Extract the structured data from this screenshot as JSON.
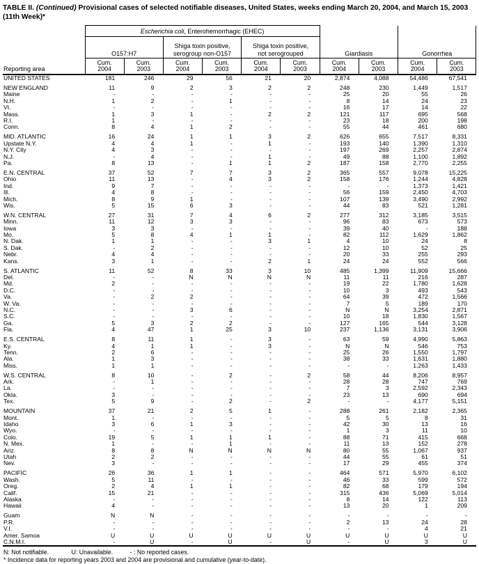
{
  "title": {
    "part_bold": "TABLE II. ",
    "part_italic": "(Continued)",
    "part_rest": " Provisional cases of selected notifiable diseases, United States, weeks ending March 20, 2004, and March 15, 2003",
    "line2": "(11th Week)*"
  },
  "table": {
    "header": {
      "reporting_area": "Reporting area",
      "ehec_italic": "Escherichia coli",
      "ehec_rest": ", Enterohemorrhagic (EHEC)",
      "sub1": "O157:H7",
      "sub2_line1": "Shiga toxin positive,",
      "sub2_line2": "serogroup non-O157",
      "sub3_line1": "Shiga toxin positive,",
      "sub3_line2": "not serogrouped",
      "disease1": "Giardiasis",
      "disease2": "Gonorrhea",
      "cum_label": "Cum.",
      "cum_years": [
        "2004",
        "2003",
        "2004",
        "2003",
        "2004",
        "2003",
        "2004",
        "2003",
        "2004",
        "2003"
      ]
    },
    "rows": [
      {
        "area": "UNITED STATES",
        "gap_before": false,
        "values": [
          "181",
          "246",
          "29",
          "56",
          "21",
          "20",
          "2,874",
          "4,088",
          "54,486",
          "67,541"
        ]
      },
      {
        "area": "NEW ENGLAND",
        "gap_before": true,
        "values": [
          "11",
          "9",
          "2",
          "3",
          "2",
          "2",
          "248",
          "230",
          "1,449",
          "1,517"
        ]
      },
      {
        "area": "Maine",
        "gap_before": false,
        "values": [
          "-",
          "-",
          "-",
          "-",
          "-",
          "-",
          "25",
          "20",
          "55",
          "26"
        ]
      },
      {
        "area": "N.H.",
        "gap_before": false,
        "values": [
          "1",
          "2",
          "-",
          "1",
          "-",
          "-",
          "8",
          "14",
          "24",
          "23"
        ]
      },
      {
        "area": "Vt.",
        "gap_before": false,
        "values": [
          "-",
          "-",
          "-",
          "-",
          "-",
          "-",
          "16",
          "17",
          "14",
          "22"
        ]
      },
      {
        "area": "Mass.",
        "gap_before": false,
        "values": [
          "1",
          "3",
          "1",
          "-",
          "2",
          "2",
          "121",
          "117",
          "695",
          "568"
        ]
      },
      {
        "area": "R.I.",
        "gap_before": false,
        "values": [
          "1",
          "-",
          "-",
          "-",
          "-",
          "-",
          "23",
          "18",
          "200",
          "198"
        ]
      },
      {
        "area": "Conn.",
        "gap_before": false,
        "values": [
          "8",
          "4",
          "1",
          "2",
          "-",
          "-",
          "55",
          "44",
          "461",
          "680"
        ]
      },
      {
        "area": "MID. ATLANTIC",
        "gap_before": true,
        "values": [
          "16",
          "24",
          "1",
          "1",
          "3",
          "2",
          "626",
          "655",
          "7,517",
          "8,331"
        ]
      },
      {
        "area": "Upstate N.Y.",
        "gap_before": false,
        "values": [
          "4",
          "4",
          "1",
          "-",
          "1",
          "-",
          "193",
          "140",
          "1,390",
          "1,310"
        ]
      },
      {
        "area": "N.Y. City",
        "gap_before": false,
        "values": [
          "4",
          "3",
          "-",
          "-",
          "-",
          "-",
          "197",
          "269",
          "2,257",
          "2,874"
        ]
      },
      {
        "area": "N.J.",
        "gap_before": false,
        "values": [
          "-",
          "4",
          "-",
          "-",
          "1",
          "-",
          "49",
          "88",
          "1,100",
          "1,892"
        ]
      },
      {
        "area": "Pa.",
        "gap_before": false,
        "values": [
          "8",
          "13",
          "-",
          "1",
          "1",
          "2",
          "187",
          "158",
          "2,770",
          "2,255"
        ]
      },
      {
        "area": "E.N. CENTRAL",
        "gap_before": true,
        "values": [
          "37",
          "52",
          "7",
          "7",
          "3",
          "2",
          "365",
          "557",
          "9,078",
          "15,225"
        ]
      },
      {
        "area": "Ohio",
        "gap_before": false,
        "values": [
          "11",
          "13",
          "-",
          "4",
          "3",
          "2",
          "158",
          "176",
          "1,244",
          "4,828"
        ]
      },
      {
        "area": "Ind.",
        "gap_before": false,
        "values": [
          "9",
          "7",
          "-",
          "-",
          "-",
          "-",
          "-",
          "-",
          "1,373",
          "1,421"
        ]
      },
      {
        "area": "Ill.",
        "gap_before": false,
        "values": [
          "4",
          "8",
          "-",
          "-",
          "-",
          "-",
          "56",
          "159",
          "2,450",
          "4,703"
        ]
      },
      {
        "area": "Mich.",
        "gap_before": false,
        "values": [
          "8",
          "9",
          "1",
          "-",
          "-",
          "-",
          "107",
          "139",
          "3,490",
          "2,992"
        ]
      },
      {
        "area": "Wis.",
        "gap_before": false,
        "values": [
          "5",
          "15",
          "6",
          "3",
          "-",
          "-",
          "44",
          "83",
          "521",
          "1,281"
        ]
      },
      {
        "area": "W.N. CENTRAL",
        "gap_before": true,
        "values": [
          "27",
          "31",
          "7",
          "4",
          "6",
          "2",
          "277",
          "312",
          "3,185",
          "3,515"
        ]
      },
      {
        "area": "Minn.",
        "gap_before": false,
        "values": [
          "11",
          "12",
          "3",
          "3",
          "-",
          "-",
          "96",
          "83",
          "673",
          "573"
        ]
      },
      {
        "area": "Iowa",
        "gap_before": false,
        "values": [
          "3",
          "3",
          "-",
          "-",
          "-",
          "-",
          "39",
          "40",
          "-",
          "188"
        ]
      },
      {
        "area": "Mo.",
        "gap_before": false,
        "values": [
          "5",
          "8",
          "4",
          "1",
          "1",
          "-",
          "82",
          "112",
          "1,629",
          "1,862"
        ]
      },
      {
        "area": "N. Dak.",
        "gap_before": false,
        "values": [
          "1",
          "1",
          "-",
          "-",
          "3",
          "1",
          "4",
          "10",
          "24",
          "8"
        ]
      },
      {
        "area": "S. Dak.",
        "gap_before": false,
        "values": [
          "-",
          "2",
          "-",
          "-",
          "-",
          "-",
          "12",
          "10",
          "52",
          "25"
        ]
      },
      {
        "area": "Nebr.",
        "gap_before": false,
        "values": [
          "4",
          "4",
          "-",
          "-",
          "-",
          "-",
          "20",
          "33",
          "255",
          "293"
        ]
      },
      {
        "area": "Kans.",
        "gap_before": false,
        "values": [
          "3",
          "1",
          "-",
          "-",
          "2",
          "1",
          "24",
          "24",
          "552",
          "566"
        ]
      },
      {
        "area": "S. ATLANTIC",
        "gap_before": true,
        "values": [
          "11",
          "52",
          "8",
          "33",
          "3",
          "10",
          "485",
          "1,399",
          "11,909",
          "15,666"
        ]
      },
      {
        "area": "Del.",
        "gap_before": false,
        "values": [
          "-",
          "-",
          "N",
          "N",
          "N",
          "N",
          "11",
          "11",
          "216",
          "287"
        ]
      },
      {
        "area": "Md.",
        "gap_before": false,
        "values": [
          "2",
          "-",
          "-",
          "-",
          "-",
          "-",
          "19",
          "22",
          "1,780",
          "1,628"
        ]
      },
      {
        "area": "D.C.",
        "gap_before": false,
        "values": [
          "-",
          "-",
          "-",
          "-",
          "-",
          "-",
          "10",
          "3",
          "493",
          "543"
        ]
      },
      {
        "area": "Va.",
        "gap_before": false,
        "values": [
          "-",
          "2",
          "2",
          "-",
          "-",
          "-",
          "64",
          "39",
          "472",
          "1,566"
        ]
      },
      {
        "area": "W. Va.",
        "gap_before": false,
        "values": [
          "-",
          "-",
          "-",
          "-",
          "-",
          "-",
          "7",
          "5",
          "189",
          "170"
        ]
      },
      {
        "area": "N.C.",
        "gap_before": false,
        "values": [
          "-",
          "-",
          "3",
          "6",
          "-",
          "-",
          "N",
          "N",
          "3,254",
          "2,871"
        ]
      },
      {
        "area": "S.C.",
        "gap_before": false,
        "values": [
          "-",
          "-",
          "-",
          "-",
          "-",
          "-",
          "10",
          "18",
          "1,830",
          "1,567"
        ]
      },
      {
        "area": "Ga.",
        "gap_before": false,
        "values": [
          "5",
          "3",
          "2",
          "2",
          "-",
          "-",
          "127",
          "165",
          "544",
          "3,128"
        ]
      },
      {
        "area": "Fla.",
        "gap_before": false,
        "values": [
          "4",
          "47",
          "1",
          "25",
          "3",
          "10",
          "237",
          "1,136",
          "3,131",
          "3,906"
        ]
      },
      {
        "area": "E.S. CENTRAL",
        "gap_before": true,
        "values": [
          "8",
          "11",
          "1",
          "-",
          "3",
          "-",
          "63",
          "59",
          "4,990",
          "5,863"
        ]
      },
      {
        "area": "Ky.",
        "gap_before": false,
        "values": [
          "4",
          "1",
          "1",
          "-",
          "3",
          "-",
          "N",
          "N",
          "546",
          "753"
        ]
      },
      {
        "area": "Tenn.",
        "gap_before": false,
        "values": [
          "2",
          "6",
          "-",
          "-",
          "-",
          "-",
          "25",
          "26",
          "1,550",
          "1,797"
        ]
      },
      {
        "area": "Ala.",
        "gap_before": false,
        "values": [
          "1",
          "3",
          "-",
          "-",
          "-",
          "-",
          "38",
          "33",
          "1,631",
          "1,880"
        ]
      },
      {
        "area": "Miss.",
        "gap_before": false,
        "values": [
          "1",
          "1",
          "-",
          "-",
          "-",
          "-",
          "-",
          "-",
          "1,263",
          "1,433"
        ]
      },
      {
        "area": "W.S. CENTRAL",
        "gap_before": true,
        "values": [
          "8",
          "10",
          "-",
          "2",
          "-",
          "2",
          "58",
          "44",
          "8,206",
          "8,957"
        ]
      },
      {
        "area": "Ark.",
        "gap_before": false,
        "values": [
          "-",
          "1",
          "-",
          "-",
          "-",
          "-",
          "28",
          "28",
          "747",
          "769"
        ]
      },
      {
        "area": "La.",
        "gap_before": false,
        "values": [
          "-",
          "-",
          "-",
          "-",
          "-",
          "-",
          "7",
          "3",
          "2,592",
          "2,343"
        ]
      },
      {
        "area": "Okla.",
        "gap_before": false,
        "values": [
          "3",
          "-",
          "-",
          "-",
          "-",
          "-",
          "23",
          "13",
          "690",
          "694"
        ]
      },
      {
        "area": "Tex.",
        "gap_before": false,
        "values": [
          "5",
          "9",
          "-",
          "2",
          "-",
          "2",
          "-",
          "-",
          "4,177",
          "5,151"
        ]
      },
      {
        "area": "MOUNTAIN",
        "gap_before": true,
        "values": [
          "37",
          "21",
          "2",
          "5",
          "1",
          "-",
          "288",
          "261",
          "2,182",
          "2,365"
        ]
      },
      {
        "area": "Mont.",
        "gap_before": false,
        "values": [
          "1",
          "-",
          "-",
          "-",
          "-",
          "-",
          "5",
          "5",
          "8",
          "31"
        ]
      },
      {
        "area": "Idaho",
        "gap_before": false,
        "values": [
          "3",
          "6",
          "1",
          "3",
          "-",
          "-",
          "42",
          "30",
          "13",
          "16"
        ]
      },
      {
        "area": "Wyo.",
        "gap_before": false,
        "values": [
          "-",
          "-",
          "-",
          "-",
          "-",
          "-",
          "1",
          "3",
          "11",
          "10"
        ]
      },
      {
        "area": "Colo.",
        "gap_before": false,
        "values": [
          "19",
          "5",
          "1",
          "1",
          "1",
          "-",
          "88",
          "71",
          "415",
          "668"
        ]
      },
      {
        "area": "N. Mex.",
        "gap_before": false,
        "values": [
          "1",
          "-",
          "-",
          "1",
          "-",
          "-",
          "11",
          "13",
          "152",
          "278"
        ]
      },
      {
        "area": "Ariz.",
        "gap_before": false,
        "values": [
          "8",
          "8",
          "N",
          "N",
          "N",
          "N",
          "80",
          "55",
          "1,067",
          "937"
        ]
      },
      {
        "area": "Utah",
        "gap_before": false,
        "values": [
          "2",
          "2",
          "-",
          "-",
          "-",
          "-",
          "44",
          "55",
          "61",
          "51"
        ]
      },
      {
        "area": "Nev.",
        "gap_before": false,
        "values": [
          "3",
          "-",
          "-",
          "-",
          "-",
          "-",
          "17",
          "29",
          "455",
          "374"
        ]
      },
      {
        "area": "PACIFIC",
        "gap_before": true,
        "values": [
          "26",
          "36",
          "1",
          "1",
          "-",
          "-",
          "464",
          "571",
          "5,970",
          "6,102"
        ]
      },
      {
        "area": "Wash.",
        "gap_before": false,
        "values": [
          "5",
          "11",
          "-",
          "-",
          "-",
          "-",
          "46",
          "33",
          "599",
          "572"
        ]
      },
      {
        "area": "Oreg.",
        "gap_before": false,
        "values": [
          "2",
          "4",
          "1",
          "1",
          "-",
          "-",
          "82",
          "68",
          "179",
          "194"
        ]
      },
      {
        "area": "Calif.",
        "gap_before": false,
        "values": [
          "15",
          "21",
          "-",
          "-",
          "-",
          "-",
          "315",
          "436",
          "5,069",
          "5,014"
        ]
      },
      {
        "area": "Alaska",
        "gap_before": false,
        "values": [
          "-",
          "-",
          "-",
          "-",
          "-",
          "-",
          "8",
          "14",
          "122",
          "113"
        ]
      },
      {
        "area": "Hawaii",
        "gap_before": false,
        "values": [
          "4",
          "-",
          "-",
          "-",
          "-",
          "-",
          "13",
          "20",
          "1",
          "209"
        ]
      },
      {
        "area": "Guam",
        "gap_before": true,
        "values": [
          "N",
          "N",
          "-",
          "-",
          "-",
          "-",
          "-",
          "-",
          "-",
          "-"
        ]
      },
      {
        "area": "P.R.",
        "gap_before": false,
        "values": [
          "-",
          "-",
          "-",
          "-",
          "-",
          "-",
          "2",
          "13",
          "24",
          "28"
        ]
      },
      {
        "area": "V.I.",
        "gap_before": false,
        "values": [
          "-",
          "-",
          "-",
          "-",
          "-",
          "-",
          "-",
          "-",
          "4",
          "21"
        ]
      },
      {
        "area": "Amer. Samoa",
        "gap_before": false,
        "values": [
          "U",
          "U",
          "U",
          "U",
          "U",
          "U",
          "U",
          "U",
          "U",
          "U"
        ]
      },
      {
        "area": "C.N.M.I.",
        "gap_before": false,
        "values": [
          "-",
          "U",
          "-",
          "U",
          "-",
          "U",
          "-",
          "U",
          "3",
          "U"
        ]
      }
    ]
  },
  "footnotes": {
    "legend": [
      "N: Not notifiable.",
      "U: Unavailable.",
      "- : No reported cases."
    ],
    "note": "* Incidence data for reporting years 2003 and 2004 are provisional and cumulative (year-to-date)."
  }
}
